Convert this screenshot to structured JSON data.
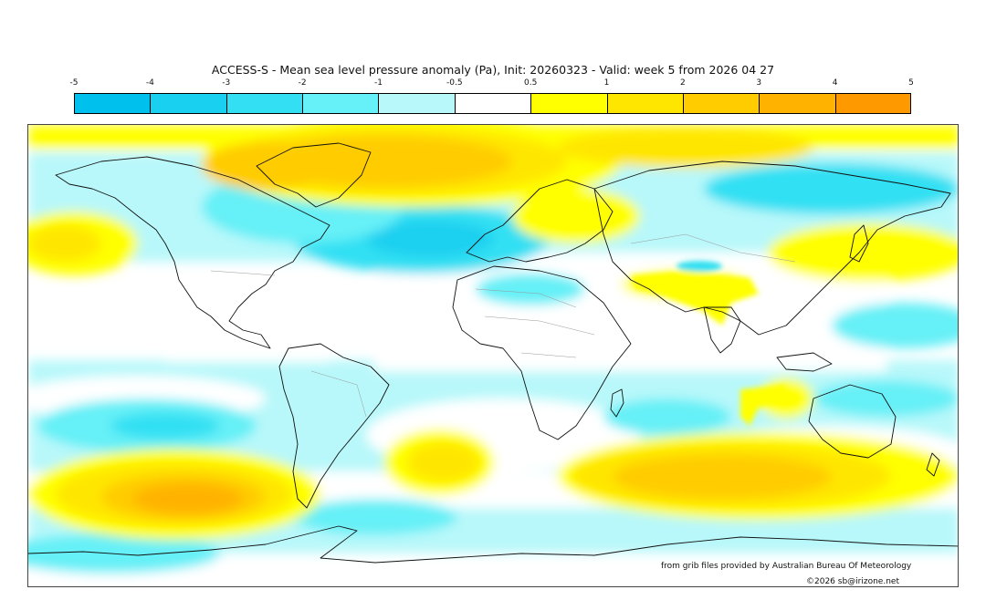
{
  "title": "ACCESS-S - Mean sea level pressure anomaly (Pa), Init: 20260323 - Valid: week 5 from 2026 04 27",
  "colorbar": {
    "ticks": [
      "-5",
      "-4",
      "-3",
      "-2",
      "-1",
      "-0.5",
      "0.5",
      "1",
      "2",
      "3",
      "4",
      "5"
    ],
    "colors": [
      "#00c0ee",
      "#1ad0f0",
      "#33e0f3",
      "#66f0f7",
      "#b8f8fa",
      "#ffffff",
      "#ffff00",
      "#ffe600",
      "#ffcc00",
      "#ffb300",
      "#ff9900"
    ]
  },
  "map": {
    "projection": "equirectangular",
    "lon_range": [
      -180,
      180
    ],
    "lat_range": [
      -90,
      90
    ],
    "regions": [
      {
        "name": "north-polar-band",
        "anomaly": 2
      },
      {
        "name": "greenland-high",
        "anomaly": 3
      },
      {
        "name": "north-atlantic-low",
        "anomaly": -3
      },
      {
        "name": "south-pacific-high",
        "anomaly": 4
      },
      {
        "name": "south-indian-ocean-high",
        "anomaly": 3
      },
      {
        "name": "south-atlantic-high",
        "anomaly": 2
      },
      {
        "name": "north-pacific-high",
        "anomaly": 1
      },
      {
        "name": "south-asia-high",
        "anomaly": 1
      },
      {
        "name": "north-pacific-low",
        "anomaly": -2
      }
    ]
  },
  "credits": {
    "source": "from grib files provided by Australian Bureau Of Meteorology",
    "copyright": "©2026 sb@irizone.net"
  }
}
